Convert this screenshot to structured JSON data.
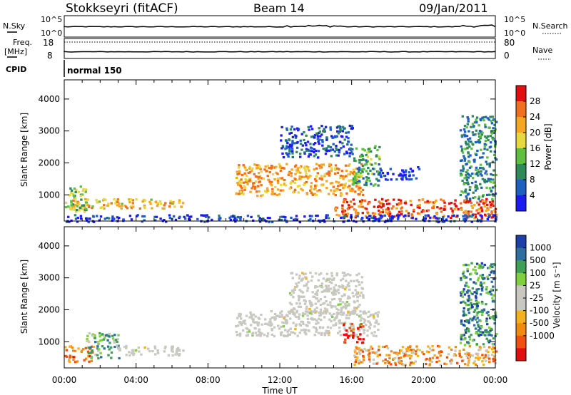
{
  "header": {
    "station": "Stokkseyri (fitACF)",
    "beam": "Beam 14",
    "date": "09/Jan/2011"
  },
  "top_panels": {
    "nsky_label": "N.Sky",
    "nsky_ticks": [
      "10^5",
      "10^0"
    ],
    "nsearch_label": "N.Search",
    "nsearch_ticks": [
      "10^5",
      "10^0"
    ],
    "freq_label_1": "Freq.",
    "freq_label_2": "[MHz]",
    "freq_ticks": [
      "18",
      "8"
    ],
    "nave_label": "Nave",
    "nave_ticks": [
      "80",
      "0"
    ],
    "cpid_label": "CPID",
    "cpid_value": "normal 150"
  },
  "x_axis": {
    "label": "Time UT",
    "ticks": [
      "00:00",
      "04:00",
      "08:00",
      "12:00",
      "16:00",
      "20:00",
      "00:00"
    ]
  },
  "colors": {
    "power_scale": [
      "#1c1cf0",
      "#1f5fbf",
      "#2e8b57",
      "#5fbf3f",
      "#e8d840",
      "#f5a623",
      "#f07020",
      "#e01010"
    ],
    "velocity_scale": [
      "#1c3fa8",
      "#2f6fa0",
      "#3e9f55",
      "#7fcf3f",
      "#c8c8c0",
      "#c8c8c0",
      "#f5b020",
      "#f08a10",
      "#f05010",
      "#e01010"
    ],
    "ground_scatter": "#c8c8c0"
  },
  "chart_data": [
    {
      "type": "heatmap",
      "title": "",
      "quantity": "Power",
      "xlabel": "Time UT",
      "ylabel": "Slant Range [km]",
      "x_ticks": [
        "00:00",
        "04:00",
        "08:00",
        "12:00",
        "16:00",
        "20:00",
        "00:00"
      ],
      "y_ticks": [
        "1000",
        "2000",
        "3000",
        "4000"
      ],
      "xlim_hours": [
        0,
        24
      ],
      "ylim_km": [
        180,
        4600
      ],
      "colorbar": {
        "label": "Power [dB]",
        "ticks": [
          "4",
          "8",
          "12",
          "16",
          "20",
          "24",
          "28"
        ]
      },
      "regions": [
        {
          "t0": 0.0,
          "t1": 6.6,
          "r0": 600,
          "r1": 900,
          "level": 0.65
        },
        {
          "t0": 0.0,
          "t1": 1.2,
          "r0": 500,
          "r1": 1300,
          "level": 0.45
        },
        {
          "t0": 9.5,
          "t1": 16.6,
          "r0": 1000,
          "r1": 2000,
          "level": 0.7
        },
        {
          "t0": 12.0,
          "t1": 16.0,
          "r0": 2200,
          "r1": 3200,
          "level": 0.15
        },
        {
          "t0": 16.0,
          "t1": 17.5,
          "r0": 1300,
          "r1": 2600,
          "level": 0.35
        },
        {
          "t0": 17.5,
          "t1": 19.7,
          "r0": 1500,
          "r1": 1900,
          "level": 0.05
        },
        {
          "t0": 15.0,
          "t1": 24.0,
          "r0": 300,
          "r1": 900,
          "level": 0.85
        },
        {
          "t0": 22.0,
          "t1": 24.0,
          "r0": 900,
          "r1": 3500,
          "level": 0.3
        },
        {
          "t0": 0.0,
          "t1": 24.0,
          "r0": 180,
          "r1": 400,
          "level": 0.1
        }
      ]
    },
    {
      "type": "heatmap",
      "title": "",
      "quantity": "Velocity",
      "xlabel": "Time UT",
      "ylabel": "Slant Range [km]",
      "x_ticks": [
        "00:00",
        "04:00",
        "08:00",
        "12:00",
        "16:00",
        "20:00",
        "00:00"
      ],
      "y_ticks": [
        "1000",
        "2000",
        "3000",
        "4000"
      ],
      "xlim_hours": [
        0,
        24
      ],
      "ylim_km": [
        180,
        4600
      ],
      "colorbar": {
        "label": "Velocity [m s⁻¹]",
        "ticks": [
          "1000",
          "500",
          "100",
          "25",
          "-25",
          "-100",
          "-500",
          "-1000"
        ]
      },
      "regions": [
        {
          "t0": 0.0,
          "t1": 1.6,
          "r0": 400,
          "r1": 900,
          "level": 0.75
        },
        {
          "t0": 1.2,
          "t1": 3.0,
          "r0": 500,
          "r1": 1300,
          "level": 0.3
        },
        {
          "t0": 3.0,
          "t1": 6.6,
          "r0": 600,
          "r1": 900,
          "level": 0.5
        },
        {
          "t0": 9.5,
          "t1": 17.5,
          "r0": 1200,
          "r1": 2000,
          "level": 0.5
        },
        {
          "t0": 12.5,
          "t1": 16.6,
          "r0": 1900,
          "r1": 3200,
          "level": 0.5
        },
        {
          "t0": 15.5,
          "t1": 16.6,
          "r0": 1000,
          "r1": 1600,
          "level": 0.95
        },
        {
          "t0": 16.0,
          "t1": 24.0,
          "r0": 300,
          "r1": 900,
          "level": 0.7
        },
        {
          "t0": 22.0,
          "t1": 24.0,
          "r0": 900,
          "r1": 3500,
          "level": 0.2
        }
      ]
    }
  ]
}
